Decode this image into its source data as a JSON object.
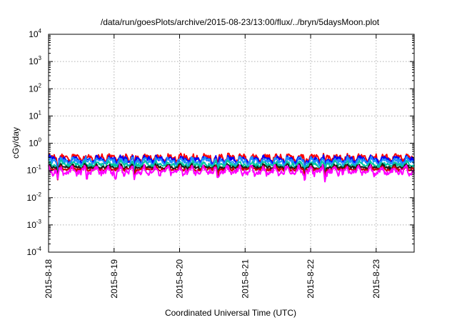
{
  "chart_data": {
    "type": "line",
    "title": "/data/run/goesPlots/archive/2015-08-23/13:00/flux/../bryn/5daysMoon.plot",
    "xlabel": "Coordinated Universal Time (UTC)",
    "ylabel": "cGy/day",
    "y_scale": "log",
    "ylim_exponents": [
      -4,
      4
    ],
    "y_ticks": [
      {
        "base": "10",
        "exp": "4"
      },
      {
        "base": "10",
        "exp": "3"
      },
      {
        "base": "10",
        "exp": "2"
      },
      {
        "base": "10",
        "exp": "1"
      },
      {
        "base": "10",
        "exp": "0"
      },
      {
        "base": "10",
        "exp": "-1"
      },
      {
        "base": "10",
        "exp": "-2"
      },
      {
        "base": "10",
        "exp": "-3"
      },
      {
        "base": "10",
        "exp": "-4"
      }
    ],
    "x_ticks": [
      "2015-8-18",
      "2015-8-19",
      "2015-8-20",
      "2015-8-21",
      "2015-8-22",
      "2015-8-23"
    ],
    "xlim_days": [
      0,
      5.58
    ],
    "grid": true,
    "series": [
      {
        "color": "#ff0000",
        "level": 0.29,
        "amp": 0.11,
        "dips": [
          0.14,
          1.31,
          2.58,
          3.91,
          4.22
        ]
      },
      {
        "color": "#0000ff",
        "level": 0.25,
        "amp": 0.1,
        "dips": [
          0.14,
          1.31,
          2.58,
          3.91,
          4.22
        ]
      },
      {
        "color": "#1e90ff",
        "level": 0.22,
        "amp": 0.1,
        "dips": [
          0.14,
          1.31,
          2.58,
          3.91,
          4.22
        ]
      },
      {
        "color": "#00c8a0",
        "level": 0.165,
        "amp": 0.08,
        "dips": [
          0.14,
          1.31,
          2.58,
          3.91,
          4.22
        ]
      },
      {
        "color": "#1a1a1a",
        "level": 0.135,
        "amp": 0.06,
        "dips": [
          0.14,
          1.31,
          2.58,
          3.91,
          4.22
        ]
      },
      {
        "color": "#cc0000",
        "level": 0.115,
        "amp": 0.06,
        "dips": [
          0.14,
          1.31,
          2.58,
          3.91,
          4.22
        ]
      },
      {
        "color": "#ff00ff",
        "level": 0.095,
        "amp": 0.12,
        "dips": [
          0.14,
          0.58,
          1.02,
          1.31,
          2.58,
          3.91,
          4.22
        ]
      }
    ]
  }
}
